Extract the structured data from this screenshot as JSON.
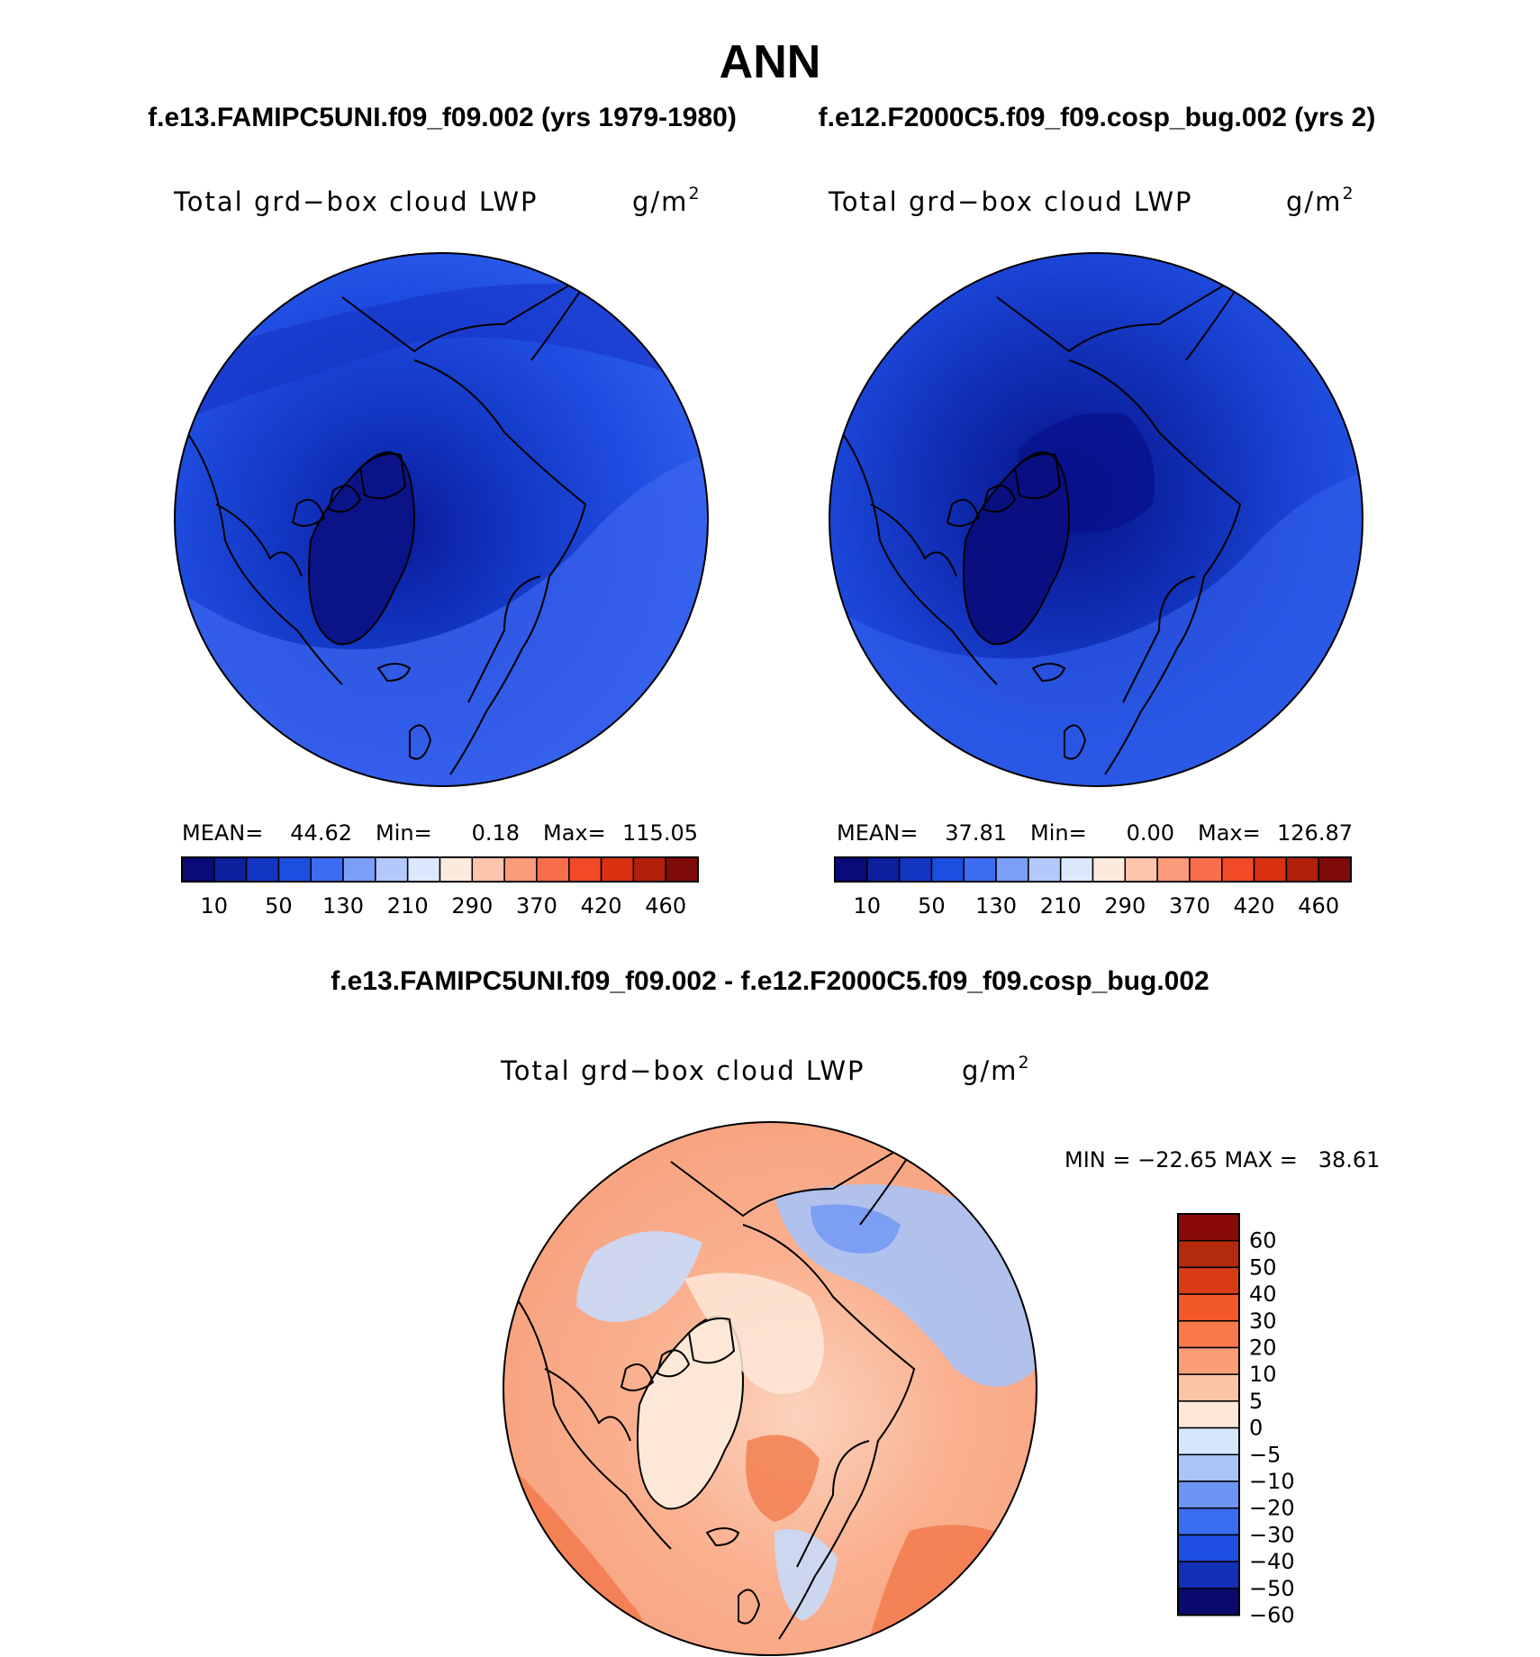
{
  "page": {
    "title": "ANN",
    "subtitle_left": "f.e13.FAMIPC5UNI.f09_f09.002 (yrs 1979-1980)",
    "subtitle_right": "f.e12.F2000C5.f09_f09.cosp_bug.002 (yrs 2)",
    "diff_title": "f.e13.FAMIPC5UNI.f09_f09.002 - f.e12.F2000C5.f09_f09.cosp_bug.002"
  },
  "colors": {
    "abs_scale": [
      "#0a0a78",
      "#0d1f9c",
      "#1236c2",
      "#1b4fe0",
      "#3c6cf2",
      "#7b9ef7",
      "#b3c9fb",
      "#dbe8fd",
      "#fdeade",
      "#fcc5ac",
      "#fb9b7a",
      "#f96e4a",
      "#f24a26",
      "#d93011",
      "#b0200b",
      "#7f0a0a"
    ],
    "diff_scale": [
      "#0a0a6e",
      "#1230b8",
      "#1e4fe2",
      "#3a6ef0",
      "#6f95f4",
      "#a8c4f9",
      "#d5e6fb",
      "#fde8d8",
      "#fcc4a6",
      "#fa9e78",
      "#f8794c",
      "#f25828",
      "#d93c14",
      "#b42a0c",
      "#8a0a0a"
    ],
    "ocean_mid": "#2a55e6",
    "land_dark": "#0b1590"
  },
  "chart_data": [
    {
      "type": "heatmap",
      "projection": "north-polar-stereographic",
      "title": "Total grd−box cloud LWP",
      "units_base": "g/m",
      "units_exp": "2",
      "stats": {
        "mean_label": "MEAN=",
        "mean": "44.62",
        "min_label": "Min=",
        "min": "0.18",
        "max_label": "Max=",
        "max": "115.05"
      },
      "colorbar_ticks": [
        "10",
        "50",
        "130",
        "210",
        "290",
        "370",
        "420",
        "460"
      ],
      "color_levels": [
        10,
        30,
        50,
        90,
        130,
        170,
        210,
        250,
        290,
        330,
        370,
        400,
        420,
        440,
        460
      ]
    },
    {
      "type": "heatmap",
      "projection": "north-polar-stereographic",
      "title": "Total grd−box cloud LWP",
      "units_base": "g/m",
      "units_exp": "2",
      "stats": {
        "mean_label": "MEAN=",
        "mean": "37.81",
        "min_label": "Min=",
        "min": "0.00",
        "max_label": "Max=",
        "max": "126.87"
      },
      "colorbar_ticks": [
        "10",
        "50",
        "130",
        "210",
        "290",
        "370",
        "420",
        "460"
      ],
      "color_levels": [
        10,
        30,
        50,
        90,
        130,
        170,
        210,
        250,
        290,
        330,
        370,
        400,
        420,
        440,
        460
      ]
    },
    {
      "type": "heatmap",
      "projection": "north-polar-stereographic",
      "title": "Total grd−box cloud LWP",
      "units_base": "g/m",
      "units_exp": "2",
      "minmax": "MIN = −22.65 MAX =   38.61",
      "colorbar_ticks": [
        "60",
        "50",
        "40",
        "30",
        "20",
        "10",
        "5",
        "0",
        "−5",
        "−10",
        "−20",
        "−30",
        "−40",
        "−50",
        "−60"
      ]
    }
  ]
}
